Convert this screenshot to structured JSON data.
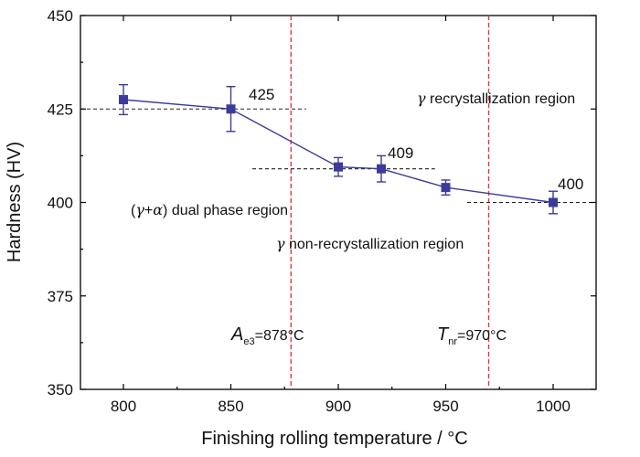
{
  "chart_data": {
    "type": "scatter",
    "xlabel": "Finishing rolling temperature / °C",
    "ylabel": "Hardness (HV)",
    "xlim": [
      780,
      1020
    ],
    "ylim": [
      350,
      450
    ],
    "x_ticks": [
      800,
      850,
      900,
      950,
      1000
    ],
    "y_ticks": [
      350,
      375,
      400,
      425,
      450
    ],
    "series": [
      {
        "x": [
          800,
          850,
          900,
          920,
          950,
          1000
        ],
        "y": [
          427.5,
          425,
          409.5,
          409,
          404,
          400
        ],
        "error": [
          4,
          6,
          2.5,
          3.5,
          2,
          3
        ],
        "color": "#3b3b9a"
      }
    ],
    "vertical_lines": [
      {
        "x": 878,
        "color": "#e03a3a",
        "label_main": "A",
        "label_sub": "e3",
        "label_value": "=878°C"
      },
      {
        "x": 970,
        "color": "#e03a3a",
        "label_main": "T",
        "label_sub": "nr",
        "label_value": "=970°C"
      }
    ],
    "reference_lines": [
      {
        "y": 425,
        "x_range": [
          780,
          885
        ],
        "label": "425"
      },
      {
        "y": 409,
        "x_range": [
          860,
          945
        ],
        "label": "409"
      },
      {
        "y": 400,
        "x_range": [
          960,
          1020
        ],
        "label": "400"
      }
    ],
    "region_labels": {
      "recrystallization": {
        "greek": "γ",
        "text": " recrystallization region"
      },
      "dual_phase": {
        "open": "(",
        "greek1": "γ",
        "plus": "+",
        "greek2": "α",
        "close": ")",
        "text": " dual phase region"
      },
      "non_recrystallization": {
        "greek": "γ",
        "text": " non-recrystallization region"
      }
    }
  }
}
